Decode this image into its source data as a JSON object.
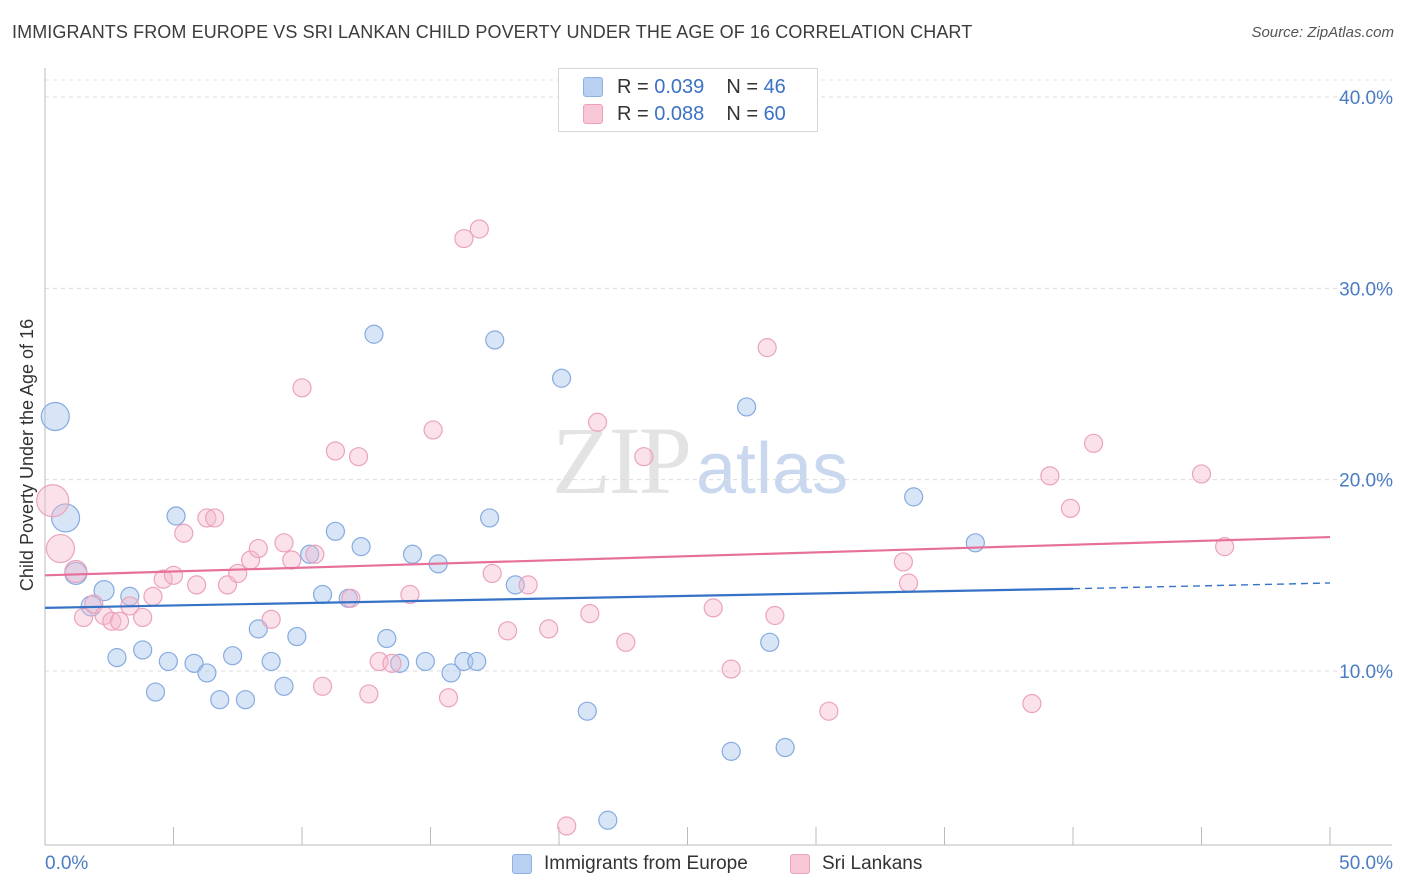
{
  "title": "IMMIGRANTS FROM EUROPE VS SRI LANKAN CHILD POVERTY UNDER THE AGE OF 16 CORRELATION CHART",
  "source": "Source: ZipAtlas.com",
  "watermark": {
    "zip": "ZIP",
    "atlas": "atlas"
  },
  "colors": {
    "blue": "#3572c6",
    "blue_fill": "#a9c6ee",
    "pink": "#e6709a",
    "pink_fill": "#f6b6ca",
    "tick": "#4a7cc4"
  },
  "legend": {
    "blue": {
      "r_label": "R = ",
      "r_value": "0.039",
      "n_label": "N = ",
      "n_value": "46"
    },
    "pink": {
      "r_label": "R = ",
      "r_value": "0.088",
      "n_label": "N = ",
      "n_value": "60"
    }
  },
  "bottom_legend": {
    "blue": "Immigrants from Europe",
    "pink": "Sri Lankans"
  },
  "chart_data": {
    "type": "scatter",
    "title": "IMMIGRANTS FROM EUROPE VS SRI LANKAN CHILD POVERTY UNDER THE AGE OF 16 CORRELATION CHART",
    "xlabel": "",
    "ylabel": "Child Poverty Under the Age of 16",
    "xlim": [
      0,
      50
    ],
    "ylim": [
      0,
      40
    ],
    "x_tick_labels": [
      "0.0%",
      "50.0%"
    ],
    "y_ticks": [
      10,
      20,
      30,
      40
    ],
    "y_tick_labels": [
      "10.0%",
      "20.0%",
      "30.0%",
      "40.0%"
    ],
    "grid": true,
    "series": [
      {
        "name": "Immigrants from Europe",
        "color": "#3572c6",
        "trend": {
          "x": [
            0,
            40
          ],
          "y": [
            13.3,
            14.3
          ],
          "dashed_to": [
            50,
            14.6
          ]
        },
        "points": [
          [
            0.4,
            23.3,
            14
          ],
          [
            0.8,
            18.0,
            14
          ],
          [
            1.2,
            15.1,
            11
          ],
          [
            1.8,
            13.4,
            10
          ],
          [
            2.3,
            14.2,
            10
          ],
          [
            2.8,
            10.7,
            9
          ],
          [
            3.3,
            13.9,
            9
          ],
          [
            3.8,
            11.1,
            9
          ],
          [
            4.3,
            8.9,
            9
          ],
          [
            4.8,
            10.5,
            9
          ],
          [
            5.1,
            18.1,
            9
          ],
          [
            5.8,
            10.4,
            9
          ],
          [
            6.3,
            9.9,
            9
          ],
          [
            6.8,
            8.5,
            9
          ],
          [
            7.3,
            10.8,
            9
          ],
          [
            7.8,
            8.5,
            9
          ],
          [
            8.3,
            12.2,
            9
          ],
          [
            8.8,
            10.5,
            9
          ],
          [
            9.3,
            9.2,
            9
          ],
          [
            9.8,
            11.8,
            9
          ],
          [
            10.3,
            16.1,
            9
          ],
          [
            10.8,
            14.0,
            9
          ],
          [
            11.3,
            17.3,
            9
          ],
          [
            11.8,
            13.8,
            9
          ],
          [
            12.3,
            16.5,
            9
          ],
          [
            12.8,
            27.6,
            9
          ],
          [
            13.3,
            11.7,
            9
          ],
          [
            13.8,
            10.4,
            9
          ],
          [
            14.3,
            16.1,
            9
          ],
          [
            14.8,
            10.5,
            9
          ],
          [
            15.3,
            15.6,
            9
          ],
          [
            15.8,
            9.9,
            9
          ],
          [
            16.3,
            10.5,
            9
          ],
          [
            16.8,
            10.5,
            9
          ],
          [
            17.3,
            18.0,
            9
          ],
          [
            17.5,
            27.3,
            9
          ],
          [
            18.3,
            14.5,
            9
          ],
          [
            20.1,
            25.3,
            9
          ],
          [
            21.1,
            7.9,
            9
          ],
          [
            21.9,
            2.2,
            9
          ],
          [
            26.7,
            5.8,
            9
          ],
          [
            27.3,
            23.8,
            9
          ],
          [
            28.8,
            6.0,
            9
          ],
          [
            28.2,
            11.5,
            9
          ],
          [
            33.8,
            19.1,
            9
          ],
          [
            36.2,
            16.7,
            9
          ]
        ]
      },
      {
        "name": "Sri Lankans",
        "color": "#e6709a",
        "trend": {
          "x": [
            0,
            50
          ],
          "y": [
            15.0,
            17.0
          ]
        },
        "points": [
          [
            0.3,
            18.9,
            16
          ],
          [
            0.6,
            16.4,
            14
          ],
          [
            1.2,
            15.2,
            11
          ],
          [
            1.5,
            12.8,
            9
          ],
          [
            1.9,
            13.5,
            9
          ],
          [
            2.3,
            12.9,
            9
          ],
          [
            2.6,
            12.6,
            9
          ],
          [
            2.9,
            12.6,
            9
          ],
          [
            3.3,
            13.4,
            9
          ],
          [
            3.8,
            12.8,
            9
          ],
          [
            4.2,
            13.9,
            9
          ],
          [
            4.6,
            14.8,
            9
          ],
          [
            5.0,
            15.0,
            9
          ],
          [
            5.4,
            17.2,
            9
          ],
          [
            5.9,
            14.5,
            9
          ],
          [
            6.3,
            18.0,
            9
          ],
          [
            6.6,
            18.0,
            9
          ],
          [
            7.1,
            14.5,
            9
          ],
          [
            7.5,
            15.1,
            9
          ],
          [
            8.0,
            15.8,
            9
          ],
          [
            8.3,
            16.4,
            9
          ],
          [
            8.8,
            12.7,
            9
          ],
          [
            9.3,
            16.7,
            9
          ],
          [
            9.6,
            15.8,
            9
          ],
          [
            10.0,
            24.8,
            9
          ],
          [
            10.5,
            16.1,
            9
          ],
          [
            10.8,
            9.2,
            9
          ],
          [
            11.3,
            21.5,
            9
          ],
          [
            11.9,
            13.8,
            9
          ],
          [
            12.2,
            21.2,
            9
          ],
          [
            12.6,
            8.8,
            9
          ],
          [
            13.0,
            10.5,
            9
          ],
          [
            13.5,
            10.4,
            9
          ],
          [
            14.2,
            14.0,
            9
          ],
          [
            15.1,
            22.6,
            9
          ],
          [
            15.7,
            8.6,
            9
          ],
          [
            16.3,
            32.6,
            9
          ],
          [
            16.9,
            33.1,
            9
          ],
          [
            17.4,
            15.1,
            9
          ],
          [
            18.0,
            12.1,
            9
          ],
          [
            18.8,
            14.5,
            9
          ],
          [
            19.6,
            12.2,
            9
          ],
          [
            20.3,
            1.9,
            9
          ],
          [
            21.2,
            13.0,
            9
          ],
          [
            21.5,
            23.0,
            9
          ],
          [
            22.6,
            11.5,
            9
          ],
          [
            23.3,
            21.2,
            9
          ],
          [
            26.0,
            13.3,
            9
          ],
          [
            26.7,
            10.1,
            9
          ],
          [
            28.1,
            26.9,
            9
          ],
          [
            28.4,
            12.9,
            9
          ],
          [
            30.5,
            7.9,
            9
          ],
          [
            33.4,
            15.7,
            9
          ],
          [
            33.6,
            14.6,
            9
          ],
          [
            38.4,
            8.3,
            9
          ],
          [
            39.1,
            20.2,
            9
          ],
          [
            39.9,
            18.5,
            9
          ],
          [
            40.8,
            21.9,
            9
          ],
          [
            45.0,
            20.3,
            9
          ],
          [
            45.9,
            16.5,
            9
          ]
        ]
      }
    ]
  }
}
